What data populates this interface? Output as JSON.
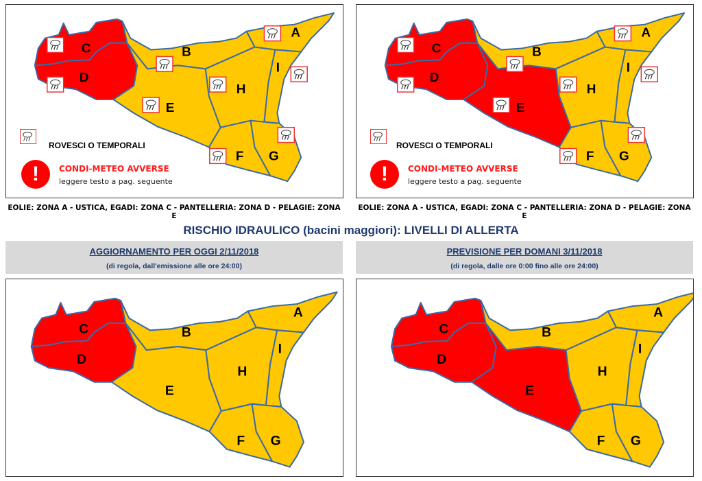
{
  "colors": {
    "red": "#ff0000",
    "yellow": "#ffc800",
    "border": "#3a6aa8",
    "title": "#1f3a6e"
  },
  "weather_icon": "rain-storm-cloud-icon",
  "maps": [
    {
      "id": "meteo-oggi",
      "zones": {
        "A": "yellow",
        "B": "yellow",
        "C": "red",
        "D": "red",
        "E": "yellow",
        "F": "yellow",
        "G": "yellow",
        "H": "yellow",
        "I": "yellow"
      },
      "storm_icons": true
    },
    {
      "id": "meteo-domani",
      "zones": {
        "A": "yellow",
        "B": "yellow",
        "C": "red",
        "D": "red",
        "E": "red",
        "F": "yellow",
        "G": "yellow",
        "H": "yellow",
        "I": "yellow"
      },
      "storm_icons": true
    },
    {
      "id": "idraulico-oggi",
      "zones": {
        "A": "yellow",
        "B": "yellow",
        "C": "red",
        "D": "red",
        "E": "yellow",
        "F": "yellow",
        "G": "yellow",
        "H": "yellow",
        "I": "yellow"
      },
      "storm_icons": false
    },
    {
      "id": "idraulico-domani",
      "zones": {
        "A": "yellow",
        "B": "yellow",
        "C": "red",
        "D": "red",
        "E": "red",
        "F": "yellow",
        "G": "yellow",
        "H": "yellow",
        "I": "yellow"
      },
      "storm_icons": false
    }
  ],
  "legend": {
    "storms": "ROVESCI O TEMPORALI",
    "alert_title": "CONDI-METEO AVVERSE",
    "alert_sub": "leggere testo a pag. seguente",
    "alert_symbol": "!"
  },
  "islands_note": "EOLIE: ZONA A - USTICA, EGADI: ZONA C - PANTELLERIA: ZONA D - PELAGIE: ZONA E",
  "hydraulic": {
    "title": "RISCHIO IDRAULICO (bacini maggiori): LIVELLI DI ALLERTA",
    "today": {
      "heading": "AGGIORNAMENTO PER OGGI 2/11/2018",
      "sub": "(di regola, dall'emissione alle ore 24:00)"
    },
    "tomorrow": {
      "heading": "PREVISIONE PER DOMANI 3/11/2018",
      "sub": "(di regola, dalle ore 0:00 fino alle ore 24:00)"
    }
  }
}
